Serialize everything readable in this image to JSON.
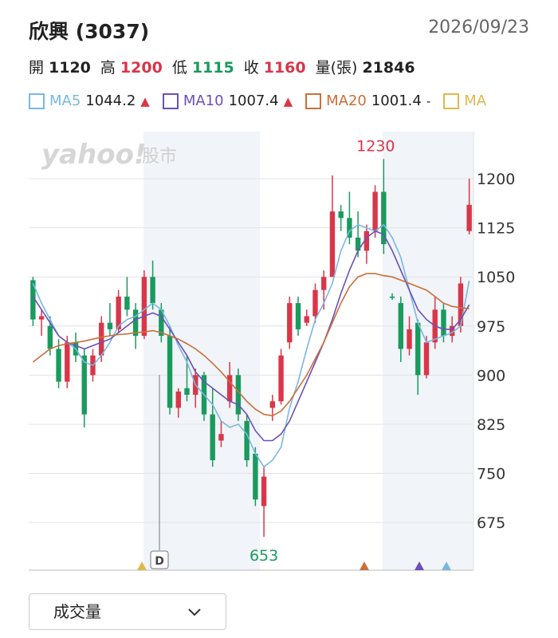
{
  "header": {
    "title": "欣興 (3037)",
    "date": "2026/09/23"
  },
  "stats": [
    {
      "label": "開",
      "value": 1120,
      "color": "#222222"
    },
    {
      "label": "高",
      "value": 1200,
      "color": "#d9364a"
    },
    {
      "label": "低",
      "value": 1115,
      "color": "#1a9a5e"
    },
    {
      "label": "收",
      "value": 1160,
      "color": "#d9364a"
    },
    {
      "label": "量(張)",
      "value": 21846,
      "color": "#222222"
    }
  ],
  "legend": [
    {
      "name": "MA5",
      "value": 1044.2,
      "trend": "▲"
    },
    {
      "name": "MA10",
      "value": 1007.4,
      "trend": "▲"
    },
    {
      "name": "MA20",
      "value": 1001.4,
      "trend": "-"
    },
    {
      "name": "MA"
    }
  ],
  "logo": {
    "brand": "yahoo!",
    "section": "股市"
  },
  "dropdown": {
    "label": "成交量"
  },
  "chart_data": {
    "type": "candlestick",
    "up_color": "#d9364a",
    "down_color": "#1a9a5e",
    "open": [
      1045,
      985,
      975,
      940,
      890,
      950,
      930,
      900,
      930,
      980,
      970,
      1020,
      1000,
      960,
      1050,
      1000,
      960,
      850,
      880,
      870,
      900,
      840,
      800,
      860,
      900,
      830,
      780,
      700,
      850,
      860,
      950,
      1010,
      980,
      990,
      1030,
      1050,
      1150,
      1140,
      1110,
      1090,
      1120,
      1180,
      1020,
      1010,
      940,
      980,
      900,
      950,
      1000,
      960,
      975,
      1120
    ],
    "high": [
      1050,
      1000,
      990,
      955,
      960,
      965,
      940,
      940,
      990,
      1010,
      1030,
      1050,
      1010,
      1060,
      1075,
      1010,
      975,
      880,
      930,
      910,
      905,
      880,
      830,
      920,
      910,
      840,
      790,
      760,
      870,
      940,
      1020,
      1020,
      1000,
      1040,
      1060,
      1205,
      1160,
      1180,
      1150,
      1130,
      1190,
      1230,
      1025,
      1020,
      990,
      985,
      960,
      1020,
      1010,
      990,
      1050,
      1200
    ],
    "low": [
      975,
      960,
      930,
      880,
      880,
      920,
      820,
      890,
      920,
      960,
      965,
      990,
      940,
      955,
      1000,
      950,
      840,
      835,
      860,
      850,
      830,
      760,
      790,
      850,
      830,
      760,
      700,
      653,
      830,
      855,
      940,
      960,
      975,
      980,
      1000,
      1050,
      1120,
      1100,
      1080,
      1070,
      1110,
      1085,
      1015,
      920,
      930,
      870,
      895,
      940,
      950,
      950,
      965,
      1115
    ],
    "close": [
      985,
      990,
      940,
      890,
      950,
      930,
      840,
      930,
      980,
      970,
      1020,
      1000,
      960,
      1050,
      1010,
      960,
      850,
      875,
      870,
      900,
      840,
      770,
      810,
      900,
      840,
      770,
      710,
      745,
      860,
      930,
      1010,
      970,
      990,
      1030,
      1050,
      1150,
      1140,
      1110,
      1090,
      1120,
      1180,
      1100,
      1018,
      940,
      970,
      900,
      950,
      1000,
      960,
      975,
      1040,
      1160
    ],
    "series": [
      {
        "name": "MA5",
        "color": "#7ab8e0",
        "values": [
          1040,
          1010,
          985,
          960,
          950,
          940,
          920,
          915,
          930,
          950,
          975,
          985,
          990,
          1000,
          1010,
          1000,
          975,
          945,
          920,
          885,
          870,
          855,
          830,
          820,
          825,
          810,
          780,
          760,
          770,
          790,
          850,
          890,
          940,
          985,
          1010,
          1040,
          1090,
          1120,
          1130,
          1125,
          1120,
          1130,
          1110,
          1080,
          1030,
          980,
          950,
          955,
          960,
          965,
          975,
          1044.2
        ]
      },
      {
        "name": "MA10",
        "color": "#6b4fbb",
        "values": [
          1020,
          1000,
          980,
          960,
          950,
          945,
          940,
          945,
          950,
          955,
          965,
          975,
          985,
          990,
          995,
          990,
          970,
          950,
          930,
          905,
          890,
          880,
          870,
          860,
          855,
          840,
          815,
          800,
          800,
          810,
          830,
          860,
          890,
          920,
          950,
          985,
          1025,
          1060,
          1090,
          1110,
          1120,
          1115,
          1090,
          1060,
          1030,
          1000,
          985,
          975,
          970,
          970,
          985,
          1007.4
        ]
      },
      {
        "name": "MA20",
        "color": "#c9703a",
        "values": [
          920,
          930,
          940,
          945,
          948,
          950,
          952,
          955,
          958,
          960,
          962,
          963,
          965,
          966,
          968,
          965,
          960,
          955,
          948,
          940,
          930,
          918,
          905,
          890,
          875,
          860,
          848,
          840,
          838,
          845,
          860,
          880,
          900,
          925,
          950,
          980,
          1010,
          1035,
          1050,
          1055,
          1055,
          1052,
          1050,
          1045,
          1040,
          1035,
          1030,
          1020,
          1010,
          1005,
          1003,
          1001.4
        ]
      },
      {
        "name": "MA",
        "color": "#e0b84a",
        "values": []
      }
    ],
    "ylim": [
      602,
      1272
    ],
    "yticks": [
      675,
      750,
      825,
      900,
      975,
      1050,
      1125,
      1200
    ],
    "grid": true,
    "high_label": 1230,
    "low_label": 653,
    "event_marker": "D"
  }
}
